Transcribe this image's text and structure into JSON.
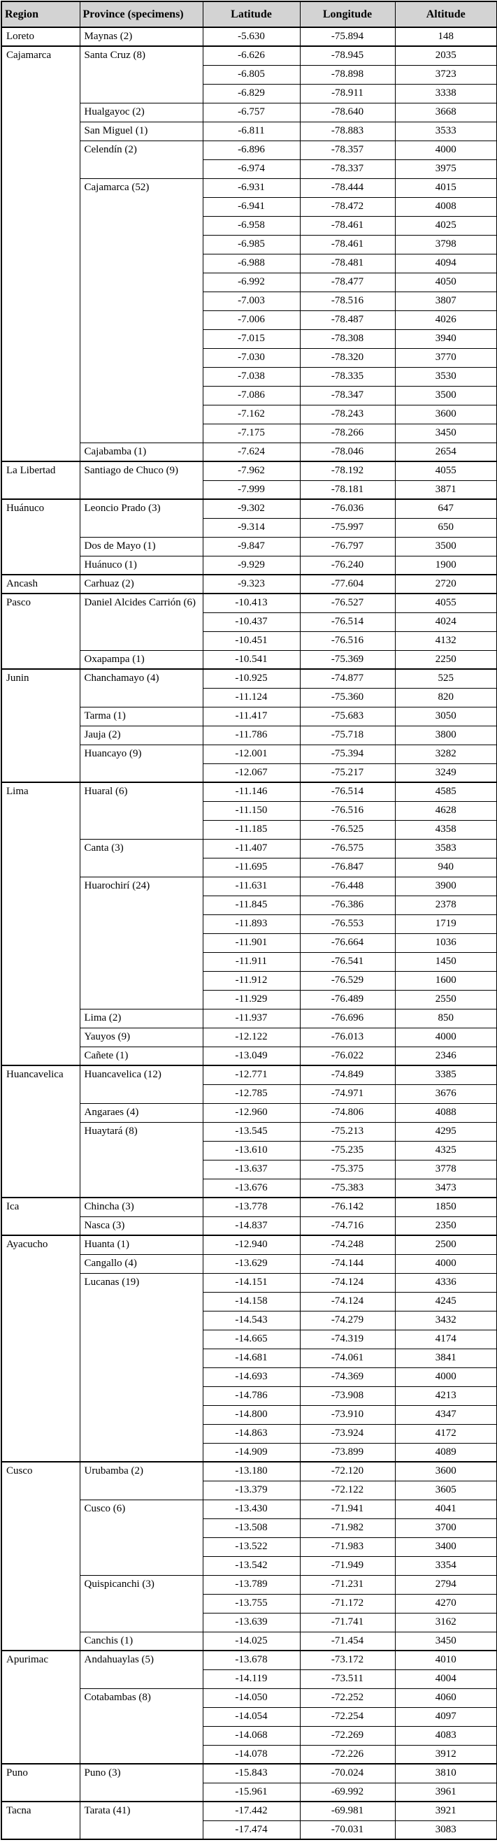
{
  "colors": {
    "header_bg": "#d3d3d3",
    "border": "#000000",
    "page_bg": "#ffffff"
  },
  "table": {
    "columns": [
      "Region",
      "Province (specimens)",
      "Latitude",
      "Longitude",
      "Altitude"
    ],
    "regions": [
      {
        "name": "Loreto",
        "provinces": [
          {
            "name": "Maynas (2)",
            "coords": [
              [
                "-5.630",
                "-75.894",
                "148"
              ]
            ]
          }
        ]
      },
      {
        "name": "Cajamarca",
        "provinces": [
          {
            "name": "Santa Cruz (8)",
            "coords": [
              [
                "-6.626",
                "-78.945",
                "2035"
              ],
              [
                "-6.805",
                "-78.898",
                "3723"
              ],
              [
                "-6.829",
                "-78.911",
                "3338"
              ]
            ]
          },
          {
            "name": "Hualgayoc (2)",
            "coords": [
              [
                "-6.757",
                "-78.640",
                "3668"
              ]
            ]
          },
          {
            "name": "San Miguel (1)",
            "coords": [
              [
                "-6.811",
                "-78.883",
                "3533"
              ]
            ]
          },
          {
            "name": "Celendín (2)",
            "coords": [
              [
                "-6.896",
                "-78.357",
                "4000"
              ],
              [
                "-6.974",
                "-78.337",
                "3975"
              ]
            ]
          },
          {
            "name": "Cajamarca (52)",
            "coords": [
              [
                "-6.931",
                "-78.444",
                "4015"
              ],
              [
                "-6.941",
                "-78.472",
                "4008"
              ],
              [
                "-6.958",
                "-78.461",
                "4025"
              ],
              [
                "-6.985",
                "-78.461",
                "3798"
              ],
              [
                "-6.988",
                "-78.481",
                "4094"
              ],
              [
                "-6.992",
                "-78.477",
                "4050"
              ],
              [
                "-7.003",
                "-78.516",
                "3807"
              ],
              [
                "-7.006",
                "-78.487",
                "4026"
              ],
              [
                "-7.015",
                "-78.308",
                "3940"
              ],
              [
                "-7.030",
                "-78.320",
                "3770"
              ],
              [
                "-7.038",
                "-78.335",
                "3530"
              ],
              [
                "-7.086",
                "-78.347",
                "3500"
              ],
              [
                "-7.162",
                "-78.243",
                "3600"
              ],
              [
                "-7.175",
                "-78.266",
                "3450"
              ]
            ]
          },
          {
            "name": "Cajabamba (1)",
            "coords": [
              [
                "-7.624",
                "-78.046",
                "2654"
              ]
            ]
          }
        ]
      },
      {
        "name": "La Libertad",
        "provinces": [
          {
            "name": "Santiago de Chuco (9)",
            "coords": [
              [
                "-7.962",
                "-78.192",
                "4055"
              ],
              [
                "-7.999",
                "-78.181",
                "3871"
              ]
            ]
          }
        ]
      },
      {
        "name": "Huánuco",
        "provinces": [
          {
            "name": "Leoncio Prado (3)",
            "coords": [
              [
                "-9.302",
                "-76.036",
                "647"
              ],
              [
                "-9.314",
                "-75.997",
                "650"
              ]
            ]
          },
          {
            "name": "Dos de Mayo (1)",
            "coords": [
              [
                "-9.847",
                "-76.797",
                "3500"
              ]
            ]
          },
          {
            "name": "Huánuco (1)",
            "coords": [
              [
                "-9.929",
                "-76.240",
                "1900"
              ]
            ]
          }
        ]
      },
      {
        "name": "Ancash",
        "provinces": [
          {
            "name": "Carhuaz (2)",
            "coords": [
              [
                "-9.323",
                "-77.604",
                "2720"
              ]
            ]
          }
        ]
      },
      {
        "name": "Pasco",
        "provinces": [
          {
            "name": "Daniel Alcides Carrión (6)",
            "coords": [
              [
                "-10.413",
                "-76.527",
                "4055"
              ],
              [
                "-10.437",
                "-76.514",
                "4024"
              ],
              [
                "-10.451",
                "-76.516",
                "4132"
              ]
            ]
          },
          {
            "name": "Oxapampa (1)",
            "coords": [
              [
                "-10.541",
                "-75.369",
                "2250"
              ]
            ]
          }
        ]
      },
      {
        "name": "Junin",
        "provinces": [
          {
            "name": "Chanchamayo (4)",
            "coords": [
              [
                "-10.925",
                "-74.877",
                "525"
              ],
              [
                "-11.124",
                "-75.360",
                "820"
              ]
            ]
          },
          {
            "name": "Tarma (1)",
            "coords": [
              [
                "-11.417",
                "-75.683",
                "3050"
              ]
            ]
          },
          {
            "name": "Jauja (2)",
            "coords": [
              [
                "-11.786",
                "-75.718",
                "3800"
              ]
            ]
          },
          {
            "name": "Huancayo (9)",
            "coords": [
              [
                "-12.001",
                "-75.394",
                "3282"
              ],
              [
                "-12.067",
                "-75.217",
                "3249"
              ]
            ]
          }
        ]
      },
      {
        "name": "Lima",
        "provinces": [
          {
            "name": "Huaral (6)",
            "coords": [
              [
                "-11.146",
                "-76.514",
                "4585"
              ],
              [
                "-11.150",
                "-76.516",
                "4628"
              ],
              [
                "-11.185",
                "-76.525",
                "4358"
              ]
            ]
          },
          {
            "name": "Canta (3)",
            "coords": [
              [
                "-11.407",
                "-76.575",
                "3583"
              ],
              [
                "-11.695",
                "-76.847",
                "940"
              ]
            ]
          },
          {
            "name": "Huarochirí (24)",
            "coords": [
              [
                "-11.631",
                "-76.448",
                "3900"
              ],
              [
                "-11.845",
                "-76.386",
                "2378"
              ],
              [
                "-11.893",
                "-76.553",
                "1719"
              ],
              [
                "-11.901",
                "-76.664",
                "1036"
              ],
              [
                "-11.911",
                "-76.541",
                "1450"
              ],
              [
                "-11.912",
                "-76.529",
                "1600"
              ],
              [
                "-11.929",
                "-76.489",
                "2550"
              ]
            ]
          },
          {
            "name": "Lima (2)",
            "coords": [
              [
                "-11.937",
                "-76.696",
                "850"
              ]
            ]
          },
          {
            "name": "Yauyos (9)",
            "coords": [
              [
                "-12.122",
                "-76.013",
                "4000"
              ]
            ]
          },
          {
            "name": "Cañete (1)",
            "coords": [
              [
                "-13.049",
                "-76.022",
                "2346"
              ]
            ]
          }
        ]
      },
      {
        "name": "Huancavelica",
        "provinces": [
          {
            "name": "Huancavelica (12)",
            "coords": [
              [
                "-12.771",
                "-74.849",
                "3385"
              ],
              [
                "-12.785",
                "-74.971",
                "3676"
              ]
            ]
          },
          {
            "name": "Angaraes (4)",
            "coords": [
              [
                "-12.960",
                "-74.806",
                "4088"
              ]
            ]
          },
          {
            "name": "Huaytará (8)",
            "coords": [
              [
                "-13.545",
                "-75.213",
                "4295"
              ],
              [
                "-13.610",
                "-75.235",
                "4325"
              ],
              [
                "-13.637",
                "-75.375",
                "3778"
              ],
              [
                "-13.676",
                "-75.383",
                "3473"
              ]
            ]
          }
        ]
      },
      {
        "name": "Ica",
        "provinces": [
          {
            "name": "Chincha (3)",
            "coords": [
              [
                "-13.778",
                "-76.142",
                "1850"
              ]
            ]
          },
          {
            "name": "Nasca (3)",
            "coords": [
              [
                "-14.837",
                "-74.716",
                "2350"
              ]
            ]
          }
        ]
      },
      {
        "name": "Ayacucho",
        "provinces": [
          {
            "name": "Huanta (1)",
            "coords": [
              [
                "-12.940",
                "-74.248",
                "2500"
              ]
            ]
          },
          {
            "name": "Cangallo (4)",
            "coords": [
              [
                "-13.629",
                "-74.144",
                "4000"
              ]
            ]
          },
          {
            "name": "Lucanas (19)",
            "coords": [
              [
                "-14.151",
                "-74.124",
                "4336"
              ],
              [
                "-14.158",
                "-74.124",
                "4245"
              ],
              [
                "-14.543",
                "-74.279",
                "3432"
              ],
              [
                "-14.665",
                "-74.319",
                "4174"
              ],
              [
                "-14.681",
                "-74.061",
                "3841"
              ],
              [
                "-14.693",
                "-74.369",
                "4000"
              ],
              [
                "-14.786",
                "-73.908",
                "4213"
              ],
              [
                "-14.800",
                "-73.910",
                "4347"
              ],
              [
                "-14.863",
                "-73.924",
                "4172"
              ],
              [
                "-14.909",
                "-73.899",
                "4089"
              ]
            ]
          }
        ]
      },
      {
        "name": "Cusco",
        "provinces": [
          {
            "name": "Urubamba (2)",
            "coords": [
              [
                "-13.180",
                "-72.120",
                "3600"
              ],
              [
                "-13.379",
                "-72.122",
                "3605"
              ]
            ]
          },
          {
            "name": "Cusco (6)",
            "coords": [
              [
                "-13.430",
                "-71.941",
                "4041"
              ],
              [
                "-13.508",
                "-71.982",
                "3700"
              ],
              [
                "-13.522",
                "-71.983",
                "3400"
              ],
              [
                "-13.542",
                "-71.949",
                "3354"
              ]
            ]
          },
          {
            "name": "Quispicanchi (3)",
            "coords": [
              [
                "-13.789",
                "-71.231",
                "2794"
              ],
              [
                "-13.755",
                "-71.172",
                "4270"
              ],
              [
                "-13.639",
                "-71.741",
                "3162"
              ]
            ]
          },
          {
            "name": "Canchis (1)",
            "coords": [
              [
                "-14.025",
                "-71.454",
                "3450"
              ]
            ]
          }
        ]
      },
      {
        "name": "Apurimac",
        "provinces": [
          {
            "name": "Andahuaylas (5)",
            "coords": [
              [
                "-13.678",
                "-73.172",
                "4010"
              ],
              [
                "-14.119",
                "-73.511",
                "4004"
              ]
            ]
          },
          {
            "name": "Cotabambas (8)",
            "coords": [
              [
                "-14.050",
                "-72.252",
                "4060"
              ],
              [
                "-14.054",
                "-72.254",
                "4097"
              ],
              [
                "-14.068",
                "-72.269",
                "4083"
              ],
              [
                "-14.078",
                "-72.226",
                "3912"
              ]
            ]
          }
        ]
      },
      {
        "name": "Puno",
        "provinces": [
          {
            "name": "Puno (3)",
            "coords": [
              [
                "-15.843",
                "-70.024",
                "3810"
              ],
              [
                "-15.961",
                "-69.992",
                "3961"
              ]
            ]
          }
        ]
      },
      {
        "name": "Tacna",
        "provinces": [
          {
            "name": "Tarata (41)",
            "coords": [
              [
                "-17.442",
                "-69.981",
                "3921"
              ],
              [
                "-17.474",
                "-70.031",
                "3083"
              ]
            ]
          }
        ]
      }
    ]
  }
}
